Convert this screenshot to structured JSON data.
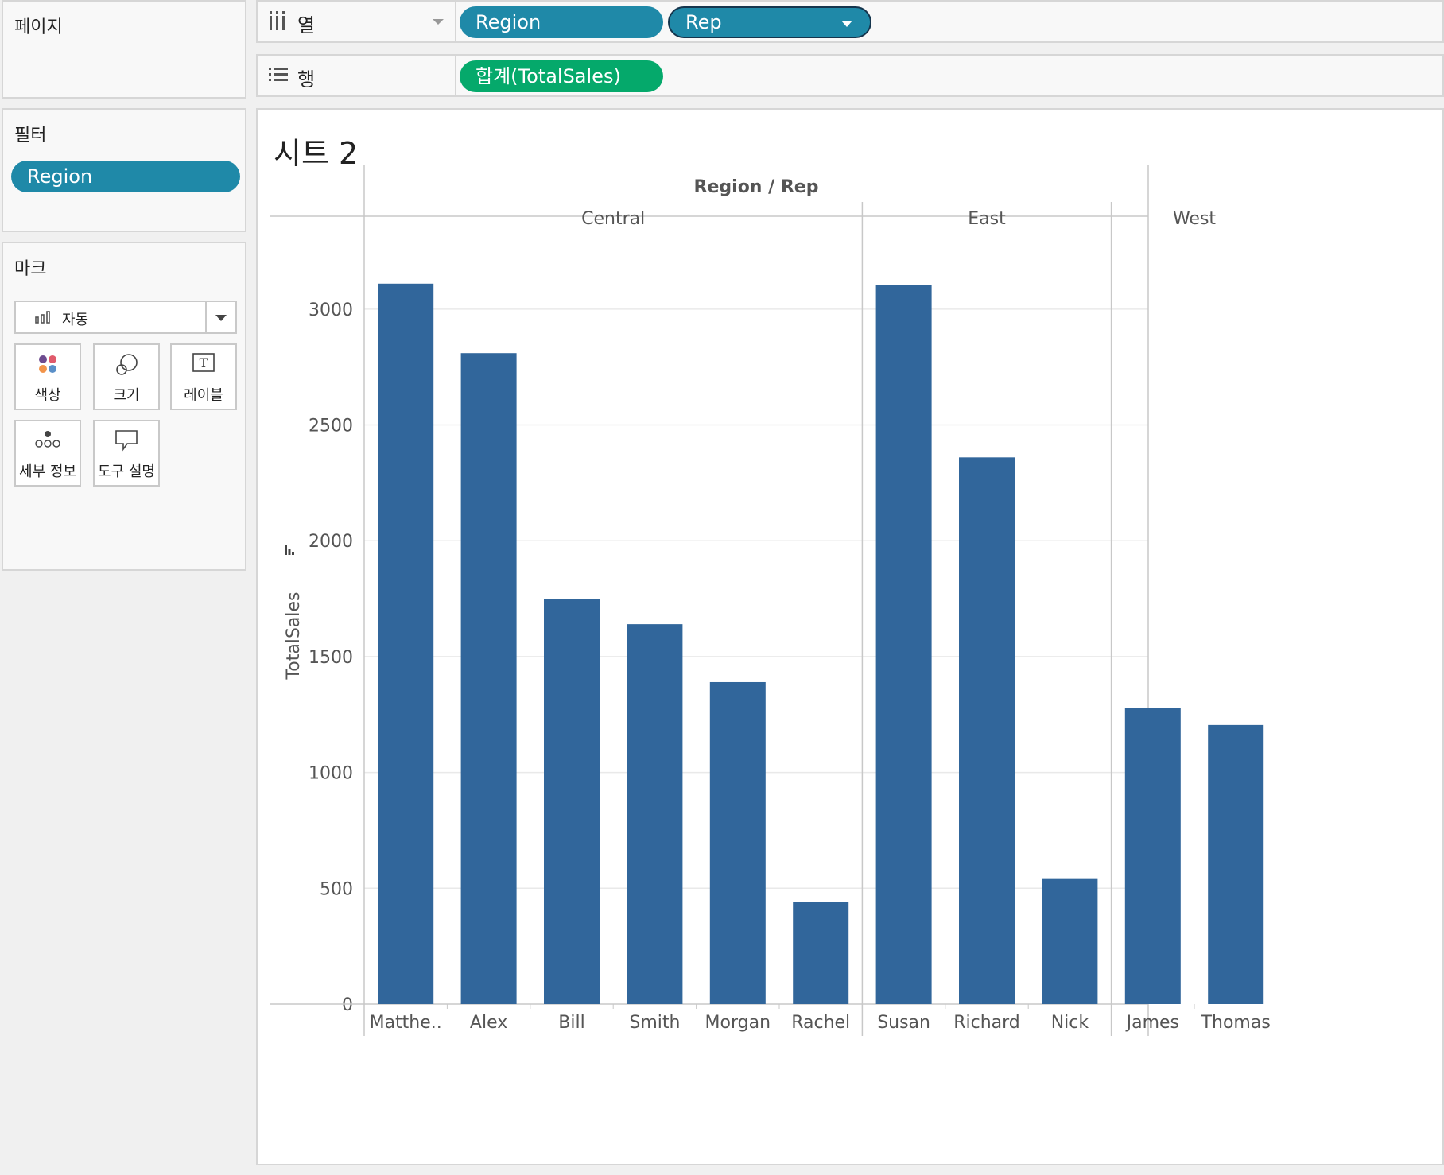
{
  "pages_panel": {
    "title": "페이지"
  },
  "filters_panel": {
    "title": "필터",
    "pill": "Region"
  },
  "marks_panel": {
    "title": "마크",
    "mark_type": "자동",
    "cards": [
      {
        "label": "색상",
        "icon": "color-dots-icon"
      },
      {
        "label": "크기",
        "icon": "size-circles-icon"
      },
      {
        "label": "레이블",
        "icon": "label-T-icon"
      },
      {
        "label": "세부 정보",
        "icon": "detail-dots-icon"
      },
      {
        "label": "도구 설명",
        "icon": "tooltip-bubble-icon"
      }
    ]
  },
  "columns_shelf": {
    "label": "열",
    "pills": [
      "Region",
      "Rep"
    ]
  },
  "rows_shelf": {
    "label": "행",
    "pills": [
      "합계(TotalSales)"
    ]
  },
  "sheet": {
    "title": "시트 2"
  },
  "colors": {
    "bar": "#31669b",
    "blue_pill": "#1f89a8",
    "green_pill": "#05a96b"
  },
  "chart_data": {
    "type": "bar",
    "header_title": "Region / Rep",
    "ylabel": "TotalSales",
    "ylim": [
      0,
      3250
    ],
    "yticks": [
      0,
      500,
      1000,
      1500,
      2000,
      2500,
      3000
    ],
    "grid": true,
    "groups": [
      {
        "name": "Central",
        "categories": [
          "Matthe..",
          "Alex",
          "Bill",
          "Smith",
          "Morgan",
          "Rachel"
        ],
        "values": [
          3110,
          2810,
          1750,
          1640,
          1390,
          440
        ]
      },
      {
        "name": "East",
        "categories": [
          "Susan",
          "Richard",
          "Nick"
        ],
        "values": [
          3105,
          2360,
          540
        ]
      },
      {
        "name": "West",
        "categories": [
          "James",
          "Thomas"
        ],
        "values": [
          1280,
          1205
        ]
      }
    ]
  }
}
